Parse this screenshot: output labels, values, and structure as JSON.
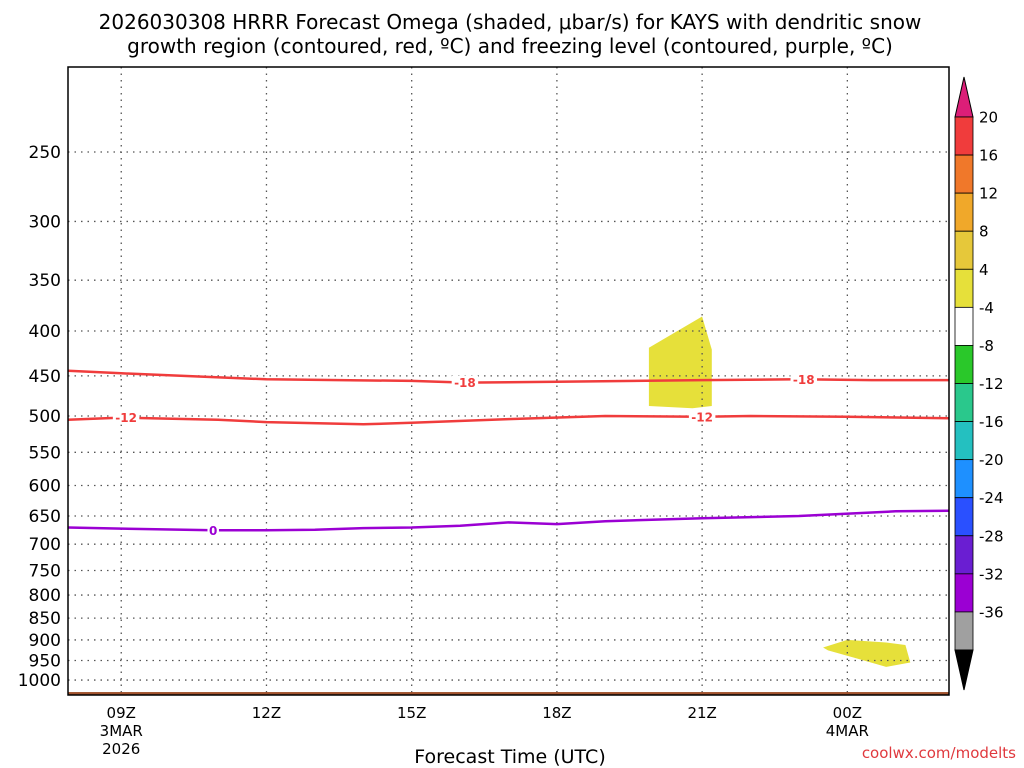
{
  "chart_data": {
    "type": "contour",
    "title_line1": "2026030308 HRRR Forecast Omega (shaded, μbar/s) for KAYS with dendritic snow",
    "title_line2": "growth region (contoured, red, ºC) and freezing level (contoured, purple, ºC)",
    "xlabel": "Forecast Time (UTC)",
    "credit": "coolwx.com/modelts",
    "x_range_hours_utc": [
      7.9,
      26.1
    ],
    "y_scale": "log-pressure",
    "y_range_hPa": [
      1040,
      200
    ],
    "y_ticks": [
      250,
      300,
      350,
      400,
      450,
      500,
      550,
      600,
      650,
      700,
      750,
      800,
      850,
      900,
      950,
      1000
    ],
    "x_ticks": [
      {
        "hour": 9,
        "label": "09Z",
        "date1": "3MAR",
        "date2": "2026"
      },
      {
        "hour": 12,
        "label": "12Z",
        "date1": "",
        "date2": ""
      },
      {
        "hour": 15,
        "label": "15Z",
        "date1": "",
        "date2": ""
      },
      {
        "hour": 18,
        "label": "18Z",
        "date1": "",
        "date2": ""
      },
      {
        "hour": 21,
        "label": "21Z",
        "date1": "",
        "date2": ""
      },
      {
        "hour": 24,
        "label": "00Z",
        "date1": "4MAR",
        "date2": ""
      }
    ],
    "grid": true,
    "contours": [
      {
        "value": -18,
        "label": "-18",
        "color": "#f03c3c",
        "kind": "dendritic",
        "points": [
          [
            7.9,
            444
          ],
          [
            9,
            447
          ],
          [
            12,
            454
          ],
          [
            15,
            456
          ],
          [
            16.1,
            458
          ],
          [
            18,
            457
          ],
          [
            21,
            455
          ],
          [
            23,
            454
          ],
          [
            24.5,
            455
          ],
          [
            26.1,
            455
          ]
        ],
        "labels_at": [
          16.1,
          23.1
        ]
      },
      {
        "value": -12,
        "label": "-12",
        "color": "#f03c3c",
        "kind": "dendritic",
        "points": [
          [
            7.9,
            505
          ],
          [
            9,
            502
          ],
          [
            11,
            505
          ],
          [
            12,
            508
          ],
          [
            14,
            511
          ],
          [
            15,
            509
          ],
          [
            17,
            504
          ],
          [
            19,
            500
          ],
          [
            21,
            501
          ],
          [
            22,
            500
          ],
          [
            24,
            501
          ],
          [
            26.1,
            503
          ]
        ],
        "labels_at": [
          9.1,
          21.0
        ]
      },
      {
        "value": 0,
        "label": "0",
        "color": "#9b00d3",
        "kind": "freezing",
        "points": [
          [
            7.9,
            670
          ],
          [
            9,
            672
          ],
          [
            10.9,
            675
          ],
          [
            12,
            675
          ],
          [
            13,
            674
          ],
          [
            14,
            671
          ],
          [
            15,
            670
          ],
          [
            16,
            667
          ],
          [
            17,
            661
          ],
          [
            18,
            664
          ],
          [
            19,
            659
          ],
          [
            21,
            654
          ],
          [
            23,
            650
          ],
          [
            25,
            642
          ],
          [
            26.1,
            641
          ]
        ],
        "labels_at": [
          10.9
        ]
      }
    ],
    "shaded_areas": [
      {
        "band": "4 to 8",
        "color": "#e6e03a",
        "points": [
          [
            19.9,
            418
          ],
          [
            21.0,
            385
          ],
          [
            21.2,
            420
          ],
          [
            21.2,
            487
          ],
          [
            20.8,
            490
          ],
          [
            19.9,
            487
          ]
        ]
      },
      {
        "band": "4 to 8",
        "color": "#e6e03a",
        "points": [
          [
            23.5,
            918
          ],
          [
            24.0,
            900
          ],
          [
            24.8,
            906
          ],
          [
            25.2,
            912
          ],
          [
            25.3,
            955
          ],
          [
            24.8,
            966
          ],
          [
            24.2,
            945
          ],
          [
            23.6,
            925
          ]
        ]
      }
    ],
    "terrain_color": "#a0522d",
    "colorbar": {
      "labels": [
        "20",
        "16",
        "12",
        "8",
        "4",
        "-4",
        "-8",
        "-12",
        "-16",
        "-20",
        "-24",
        "-28",
        "-32",
        "-36"
      ],
      "bands": [
        "#f03c3c",
        "#f0782a",
        "#f0a82a",
        "#e6c83a",
        "#e6e03a",
        "#ffffff",
        "#2ac82a",
        "#2ac88c",
        "#24c0c0",
        "#1e90ff",
        "#2a50ff",
        "#6a1ed2",
        "#9b00d3",
        "#a0a0a0"
      ],
      "top_arrow": "#dc1e78",
      "bottom_arrow": "#000000"
    }
  }
}
